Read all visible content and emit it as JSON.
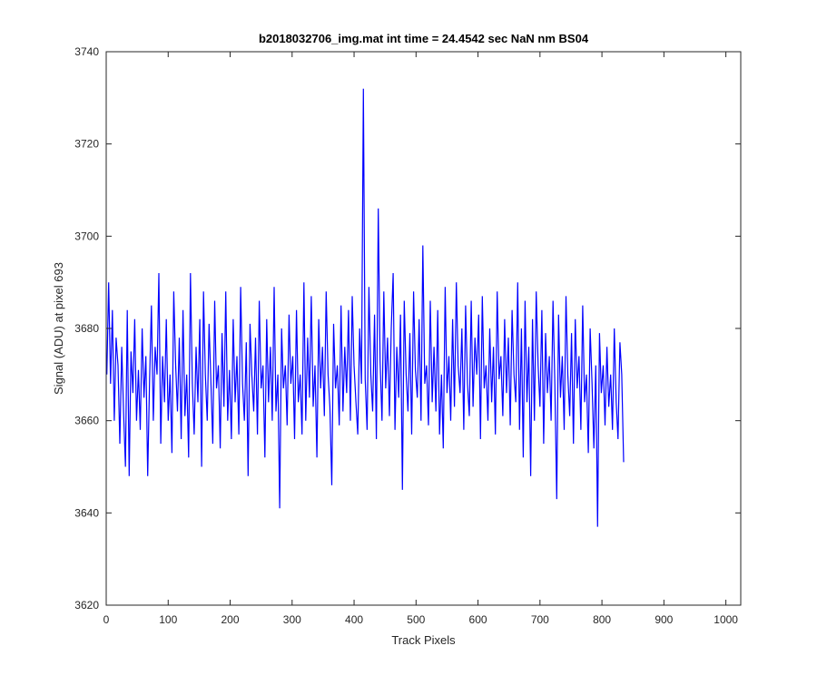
{
  "chart_data": {
    "type": "line",
    "title": "b2018032706_img.mat int time = 24.4542 sec  NaN nm BS04",
    "xlabel": "Track Pixels",
    "ylabel": "Signal (ADU) at pixel 693",
    "xlim": [
      0,
      1024
    ],
    "ylim": [
      3620,
      3740
    ],
    "xticks": [
      0,
      100,
      200,
      300,
      400,
      500,
      600,
      700,
      800,
      900,
      1000
    ],
    "yticks": [
      3620,
      3640,
      3660,
      3680,
      3700,
      3720,
      3740
    ],
    "grid": false,
    "line_color": "#0000ff",
    "series": [
      {
        "x_start": 1,
        "x_step": 3,
        "values": [
          3670,
          3690,
          3668,
          3684,
          3660,
          3678,
          3672,
          3655,
          3676,
          3662,
          3650,
          3684,
          3648,
          3675,
          3666,
          3682,
          3660,
          3671,
          3658,
          3680,
          3665,
          3674,
          3648,
          3669,
          3685,
          3660,
          3676,
          3670,
          3692,
          3655,
          3674,
          3664,
          3682,
          3660,
          3670,
          3653,
          3688,
          3672,
          3662,
          3678,
          3656,
          3684,
          3661,
          3670,
          3652,
          3692,
          3668,
          3657,
          3676,
          3664,
          3682,
          3650,
          3688,
          3670,
          3660,
          3681,
          3668,
          3655,
          3686,
          3667,
          3672,
          3654,
          3679,
          3663,
          3688,
          3660,
          3671,
          3656,
          3682,
          3664,
          3674,
          3657,
          3689,
          3668,
          3660,
          3677,
          3648,
          3681,
          3670,
          3662,
          3678,
          3657,
          3686,
          3667,
          3672,
          3652,
          3682,
          3664,
          3676,
          3660,
          3689,
          3662,
          3670,
          3641,
          3680,
          3667,
          3672,
          3659,
          3683,
          3668,
          3674,
          3656,
          3684,
          3664,
          3670,
          3657,
          3690,
          3660,
          3678,
          3665,
          3687,
          3663,
          3672,
          3652,
          3682,
          3667,
          3676,
          3661,
          3688,
          3670,
          3663,
          3646,
          3681,
          3667,
          3672,
          3659,
          3685,
          3662,
          3676,
          3666,
          3684,
          3660,
          3687,
          3672,
          3664,
          3657,
          3680,
          3668,
          3732,
          3669,
          3658,
          3689,
          3670,
          3662,
          3683,
          3656,
          3706,
          3673,
          3660,
          3688,
          3667,
          3678,
          3661,
          3680,
          3692,
          3658,
          3676,
          3665,
          3683,
          3645,
          3686,
          3670,
          3662,
          3679,
          3657,
          3688,
          3671,
          3665,
          3682,
          3660,
          3698,
          3668,
          3672,
          3659,
          3686,
          3664,
          3676,
          3662,
          3684,
          3657,
          3670,
          3654,
          3689,
          3666,
          3674,
          3660,
          3682,
          3663,
          3690,
          3672,
          3666,
          3680,
          3658,
          3685,
          3668,
          3661,
          3686,
          3663,
          3678,
          3670,
          3683,
          3656,
          3687,
          3667,
          3672,
          3660,
          3680,
          3664,
          3676,
          3657,
          3688,
          3669,
          3674,
          3661,
          3682,
          3666,
          3678,
          3659,
          3684,
          3670,
          3664,
          3690,
          3658,
          3680,
          3652,
          3686,
          3664,
          3676,
          3648,
          3682,
          3660,
          3688,
          3672,
          3663,
          3684,
          3655,
          3679,
          3666,
          3674,
          3660,
          3686,
          3668,
          3643,
          3683,
          3665,
          3674,
          3658,
          3687,
          3670,
          3661,
          3679,
          3655,
          3682,
          3667,
          3674,
          3658,
          3685,
          3664,
          3670,
          3653,
          3680,
          3668,
          3654,
          3672,
          3637,
          3679,
          3666,
          3672,
          3659,
          3676,
          3663,
          3670,
          3658,
          3680,
          3664,
          3656,
          3677,
          3670,
          3651
        ]
      }
    ]
  }
}
